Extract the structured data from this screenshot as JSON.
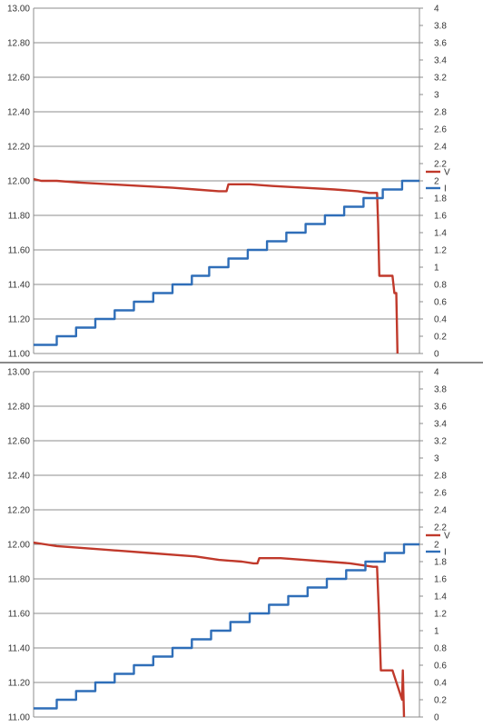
{
  "chart_data": [
    {
      "type": "line",
      "title": "",
      "xlabel": "",
      "ylabel": "",
      "y_left": {
        "lim": [
          11.0,
          13.0
        ],
        "ticks": [
          "11.00",
          "11.20",
          "11.40",
          "11.60",
          "11.80",
          "12.00",
          "12.20",
          "12.40",
          "12.60",
          "12.80",
          "13.00"
        ]
      },
      "y_right": {
        "lim": [
          0,
          4
        ],
        "ticks": [
          "0",
          "0.2",
          "0.4",
          "0.6",
          "0.8",
          "1",
          "1.2",
          "1.4",
          "1.6",
          "1.8",
          "2",
          "2.2",
          "2.4",
          "2.6",
          "2.8",
          "3",
          "3.2",
          "3.4",
          "3.6",
          "3.8",
          "4"
        ]
      },
      "x_range": [
        0,
        100
      ],
      "grid": "horizontal",
      "legend_position": "right",
      "series": [
        {
          "name": "V",
          "axis": "left",
          "color": "#c0392b",
          "points": [
            [
              0,
              12.01
            ],
            [
              2,
              12.0
            ],
            [
              6,
              12.0
            ],
            [
              12,
              11.99
            ],
            [
              20,
              11.98
            ],
            [
              28,
              11.97
            ],
            [
              36,
              11.96
            ],
            [
              42,
              11.95
            ],
            [
              48,
              11.94
            ],
            [
              50,
              11.94
            ],
            [
              50.5,
              11.98
            ],
            [
              56,
              11.98
            ],
            [
              62,
              11.97
            ],
            [
              70,
              11.96
            ],
            [
              78,
              11.95
            ],
            [
              84,
              11.94
            ],
            [
              87,
              11.93
            ],
            [
              89,
              11.93
            ],
            [
              89.3,
              11.75
            ],
            [
              89.6,
              11.45
            ],
            [
              93,
              11.45
            ],
            [
              93.5,
              11.35
            ],
            [
              94,
              11.35
            ],
            [
              94.3,
              11.0
            ]
          ]
        },
        {
          "name": "I",
          "axis": "right",
          "color": "#2f6eb8",
          "points": [
            [
              0,
              0.1
            ],
            [
              6,
              0.1
            ],
            [
              6,
              0.2
            ],
            [
              11,
              0.2
            ],
            [
              11,
              0.3
            ],
            [
              16,
              0.3
            ],
            [
              16,
              0.4
            ],
            [
              21,
              0.4
            ],
            [
              21,
              0.5
            ],
            [
              26,
              0.5
            ],
            [
              26,
              0.6
            ],
            [
              31,
              0.6
            ],
            [
              31,
              0.7
            ],
            [
              36,
              0.7
            ],
            [
              36,
              0.8
            ],
            [
              41,
              0.8
            ],
            [
              41,
              0.9
            ],
            [
              45.5,
              0.9
            ],
            [
              45.5,
              1.0
            ],
            [
              50.5,
              1.0
            ],
            [
              50.5,
              1.1
            ],
            [
              55.5,
              1.1
            ],
            [
              55.5,
              1.2
            ],
            [
              60.5,
              1.2
            ],
            [
              60.5,
              1.3
            ],
            [
              65.5,
              1.3
            ],
            [
              65.5,
              1.4
            ],
            [
              70.5,
              1.4
            ],
            [
              70.5,
              1.5
            ],
            [
              75.5,
              1.5
            ],
            [
              75.5,
              1.6
            ],
            [
              80.5,
              1.6
            ],
            [
              80.5,
              1.7
            ],
            [
              85.5,
              1.7
            ],
            [
              85.5,
              1.8
            ],
            [
              90.5,
              1.8
            ],
            [
              90.5,
              1.9
            ],
            [
              95.5,
              1.9
            ],
            [
              95.5,
              2.0
            ],
            [
              100,
              2.0
            ]
          ]
        }
      ]
    },
    {
      "type": "line",
      "title": "",
      "xlabel": "",
      "ylabel": "",
      "y_left": {
        "lim": [
          11.0,
          13.0
        ],
        "ticks": [
          "11.00",
          "11.20",
          "11.40",
          "11.60",
          "11.80",
          "12.00",
          "12.20",
          "12.40",
          "12.60",
          "12.80",
          "13.00"
        ]
      },
      "y_right": {
        "lim": [
          0,
          4
        ],
        "ticks": [
          "0",
          "0.2",
          "0.4",
          "0.6",
          "0.8",
          "1",
          "1.2",
          "1.4",
          "1.6",
          "1.8",
          "2",
          "2.2",
          "2.4",
          "2.6",
          "2.8",
          "3",
          "3.2",
          "3.4",
          "3.6",
          "3.8",
          "4"
        ]
      },
      "x_range": [
        0,
        100
      ],
      "grid": "horizontal",
      "legend_position": "right",
      "series": [
        {
          "name": "V",
          "axis": "left",
          "color": "#c0392b",
          "points": [
            [
              0,
              12.01
            ],
            [
              3,
              12.0
            ],
            [
              6,
              11.99
            ],
            [
              12,
              11.98
            ],
            [
              18,
              11.97
            ],
            [
              24,
              11.96
            ],
            [
              30,
              11.95
            ],
            [
              36,
              11.94
            ],
            [
              42,
              11.93
            ],
            [
              48,
              11.91
            ],
            [
              54,
              11.9
            ],
            [
              57,
              11.89
            ],
            [
              58,
              11.89
            ],
            [
              58.5,
              11.92
            ],
            [
              64,
              11.92
            ],
            [
              70,
              11.91
            ],
            [
              76,
              11.9
            ],
            [
              82,
              11.89
            ],
            [
              88,
              11.87
            ],
            [
              89,
              11.87
            ],
            [
              89.5,
              11.6
            ],
            [
              90,
              11.27
            ],
            [
              93,
              11.27
            ],
            [
              95.5,
              11.1
            ],
            [
              95.7,
              11.27
            ],
            [
              96,
              11.0
            ]
          ]
        },
        {
          "name": "I",
          "axis": "right",
          "color": "#2f6eb8",
          "points": [
            [
              0,
              0.1
            ],
            [
              6,
              0.1
            ],
            [
              6,
              0.2
            ],
            [
              11,
              0.2
            ],
            [
              11,
              0.3
            ],
            [
              16,
              0.3
            ],
            [
              16,
              0.4
            ],
            [
              21,
              0.4
            ],
            [
              21,
              0.5
            ],
            [
              26,
              0.5
            ],
            [
              26,
              0.6
            ],
            [
              31,
              0.6
            ],
            [
              31,
              0.7
            ],
            [
              36,
              0.7
            ],
            [
              36,
              0.8
            ],
            [
              41,
              0.8
            ],
            [
              41,
              0.9
            ],
            [
              46,
              0.9
            ],
            [
              46,
              1.0
            ],
            [
              51,
              1.0
            ],
            [
              51,
              1.1
            ],
            [
              56,
              1.1
            ],
            [
              56,
              1.2
            ],
            [
              61,
              1.2
            ],
            [
              61,
              1.3
            ],
            [
              66,
              1.3
            ],
            [
              66,
              1.4
            ],
            [
              71,
              1.4
            ],
            [
              71,
              1.5
            ],
            [
              76,
              1.5
            ],
            [
              76,
              1.6
            ],
            [
              81,
              1.6
            ],
            [
              81,
              1.7
            ],
            [
              86,
              1.7
            ],
            [
              86,
              1.8
            ],
            [
              91,
              1.8
            ],
            [
              91,
              1.9
            ],
            [
              96,
              1.9
            ],
            [
              96,
              2.0
            ],
            [
              100,
              2.0
            ]
          ]
        }
      ]
    }
  ]
}
